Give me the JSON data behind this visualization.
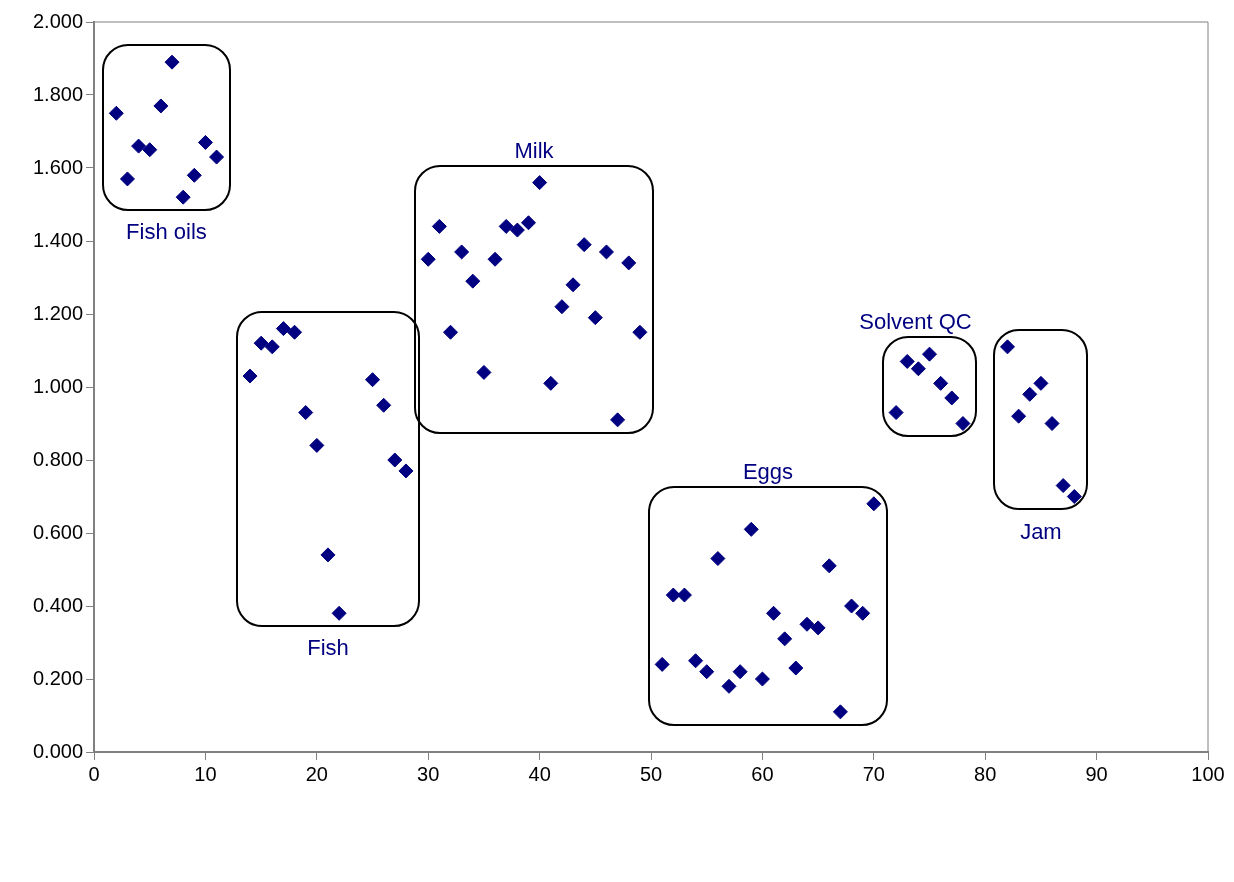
{
  "chart_data": {
    "type": "scatter",
    "marker": "diamond",
    "legend": false,
    "grid": false,
    "xlim": [
      0,
      100
    ],
    "xticks": [
      0,
      10,
      20,
      30,
      40,
      50,
      60,
      70,
      80,
      90,
      100
    ],
    "ylim": [
      0,
      2
    ],
    "yticks": [
      {
        "value": 0,
        "label": "0.000"
      },
      {
        "value": 0.2,
        "label": "0.200"
      },
      {
        "value": 0.4,
        "label": "0.400"
      },
      {
        "value": 0.6,
        "label": "0.600"
      },
      {
        "value": 0.8,
        "label": "0.800"
      },
      {
        "value": 1,
        "label": "1.000"
      },
      {
        "value": 1.2,
        "label": "1.200"
      },
      {
        "value": 1.4,
        "label": "1.400"
      },
      {
        "value": 1.6,
        "label": "1.600"
      },
      {
        "value": 1.8,
        "label": "1.800"
      },
      {
        "value": 2,
        "label": "2.000"
      }
    ],
    "series": [
      {
        "name": "Fish oils",
        "color": "#000080",
        "x": [
          2,
          3,
          4,
          5,
          6,
          7,
          8,
          9,
          10,
          11
        ],
        "values": [
          1.75,
          1.57,
          1.66,
          1.65,
          1.77,
          1.89,
          1.52,
          1.58,
          1.67,
          1.63
        ]
      },
      {
        "name": "Fish",
        "color": "#000080",
        "x": [
          14,
          15,
          16,
          17,
          18,
          19,
          20,
          21,
          22,
          25,
          26,
          27,
          28
        ],
        "values": [
          1.03,
          1.12,
          1.11,
          1.16,
          1.15,
          0.93,
          0.84,
          0.54,
          0.38,
          1.02,
          0.95,
          0.8,
          0.77
        ]
      },
      {
        "name": "Milk",
        "color": "#000080",
        "x": [
          30,
          31,
          32,
          33,
          34,
          35,
          36,
          37,
          38,
          39,
          40,
          41,
          42,
          43,
          44,
          45,
          46,
          47,
          48,
          49
        ],
        "values": [
          1.35,
          1.44,
          1.15,
          1.37,
          1.29,
          1.04,
          1.35,
          1.44,
          1.43,
          1.45,
          1.56,
          1.01,
          1.22,
          1.28,
          1.39,
          1.19,
          1.37,
          0.91,
          1.34,
          1.15
        ]
      },
      {
        "name": "Eggs",
        "color": "#000080",
        "x": [
          51,
          52,
          53,
          54,
          55,
          56,
          57,
          58,
          59,
          60,
          61,
          62,
          63,
          64,
          65,
          66,
          67,
          68,
          69,
          70
        ],
        "values": [
          0.24,
          0.43,
          0.43,
          0.25,
          0.22,
          0.53,
          0.18,
          0.22,
          0.61,
          0.2,
          0.38,
          0.31,
          0.23,
          0.35,
          0.34,
          0.51,
          0.11,
          0.4,
          0.38,
          0.68
        ]
      },
      {
        "name": "Solvent QC",
        "color": "#000080",
        "x": [
          72,
          73,
          74,
          75,
          76,
          77,
          78
        ],
        "values": [
          0.93,
          1.07,
          1.05,
          1.09,
          1.01,
          0.97,
          0.9
        ]
      },
      {
        "name": "Jam",
        "color": "#000080",
        "x": [
          82,
          83,
          84,
          85,
          86,
          87,
          88
        ],
        "values": [
          1.11,
          0.92,
          0.98,
          1.01,
          0.9,
          0.73,
          0.7
        ]
      }
    ]
  }
}
